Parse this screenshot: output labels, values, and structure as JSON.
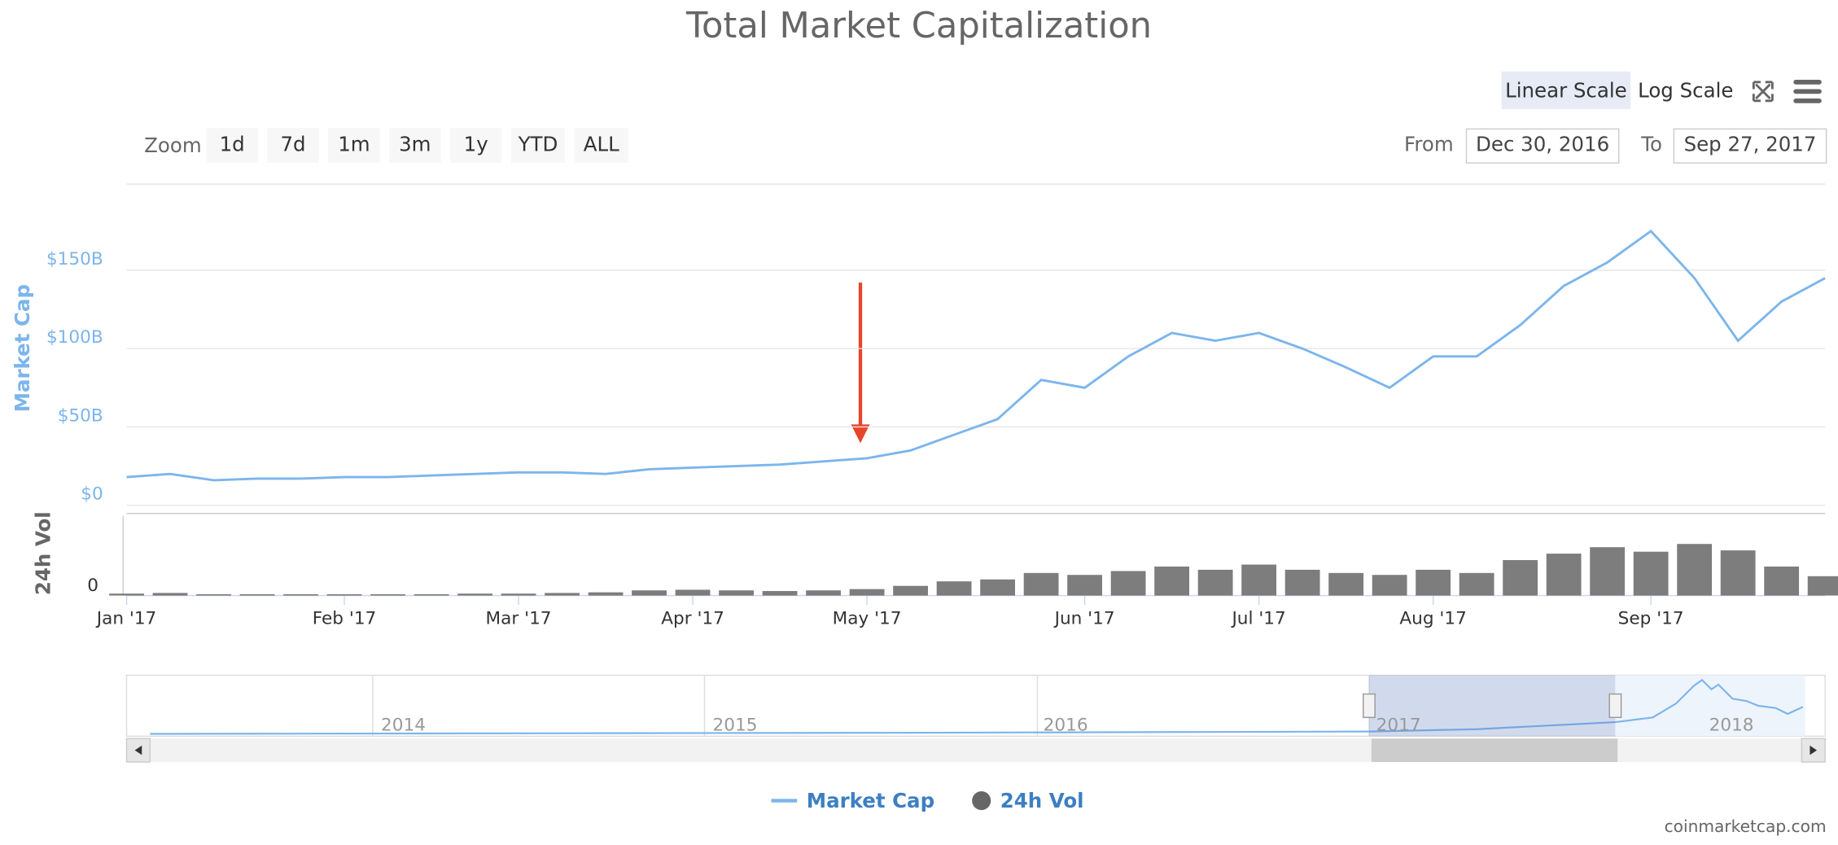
{
  "chart_data": {
    "type": "line",
    "title": "Total Market Capitalization",
    "y_label": "Market Cap",
    "y2_label": "24h Vol",
    "categories": [
      "Jan '17",
      null,
      null,
      null,
      null,
      "Feb '17",
      null,
      null,
      null,
      "Mar '17",
      null,
      null,
      null,
      "Apr '17",
      null,
      null,
      null,
      "May '17",
      null,
      null,
      null,
      null,
      "Jun '17",
      null,
      null,
      null,
      "Jul '17",
      null,
      null,
      null,
      "Aug '17",
      null,
      null,
      null,
      null,
      "Sep '17",
      null,
      null,
      null,
      null
    ],
    "series": [
      {
        "name": "Market Cap",
        "color": "#7cb5ec",
        "values": [
          18,
          20,
          16,
          17,
          17,
          18,
          18,
          19,
          20,
          21,
          21,
          20,
          23,
          24,
          25,
          26,
          28,
          30,
          35,
          45,
          55,
          80,
          75,
          95,
          110,
          105,
          110,
          100,
          88,
          75,
          95,
          95,
          115,
          140,
          155,
          175,
          145,
          105,
          130,
          145
        ]
      },
      {
        "name": "24h Vol",
        "color": "#666666",
        "type": "column",
        "axis": "y2",
        "values": [
          0.3,
          0.4,
          0.2,
          0.2,
          0.2,
          0.2,
          0.2,
          0.2,
          0.3,
          0.3,
          0.4,
          0.5,
          0.8,
          0.9,
          0.8,
          0.7,
          0.8,
          1.0,
          1.5,
          2.2,
          2.5,
          3.5,
          3.2,
          3.8,
          4.5,
          4.0,
          4.8,
          4.0,
          3.5,
          3.2,
          4.0,
          3.5,
          5.5,
          6.5,
          7.5,
          6.8,
          8.0,
          7.0,
          4.5,
          3.0
        ]
      }
    ],
    "ylim": [
      0,
      205
    ],
    "yticks": [
      {
        "value": 0,
        "label": "$0"
      },
      {
        "value": 50,
        "label": "$50B"
      },
      {
        "value": 100,
        "label": "$100B"
      },
      {
        "value": 150,
        "label": "$150B"
      }
    ],
    "y2lim": [
      0,
      12
    ],
    "y2ticks": [
      0
    ],
    "grid": true,
    "navigator_labels": [
      "2014",
      "2015",
      "2016",
      "2017",
      "2018"
    ]
  },
  "controls": {
    "scale_buttons": [
      "Linear Scale",
      "Log Scale"
    ],
    "zoom_label": "Zoom",
    "zoom_buttons": [
      "1d",
      "7d",
      "1m",
      "3m",
      "1y",
      "YTD",
      "ALL"
    ],
    "from_label": "From",
    "from_value": "Dec 30, 2016",
    "to_label": "To",
    "to_value": "Sep 27, 2017"
  },
  "credit": "coinmarketcap.com"
}
